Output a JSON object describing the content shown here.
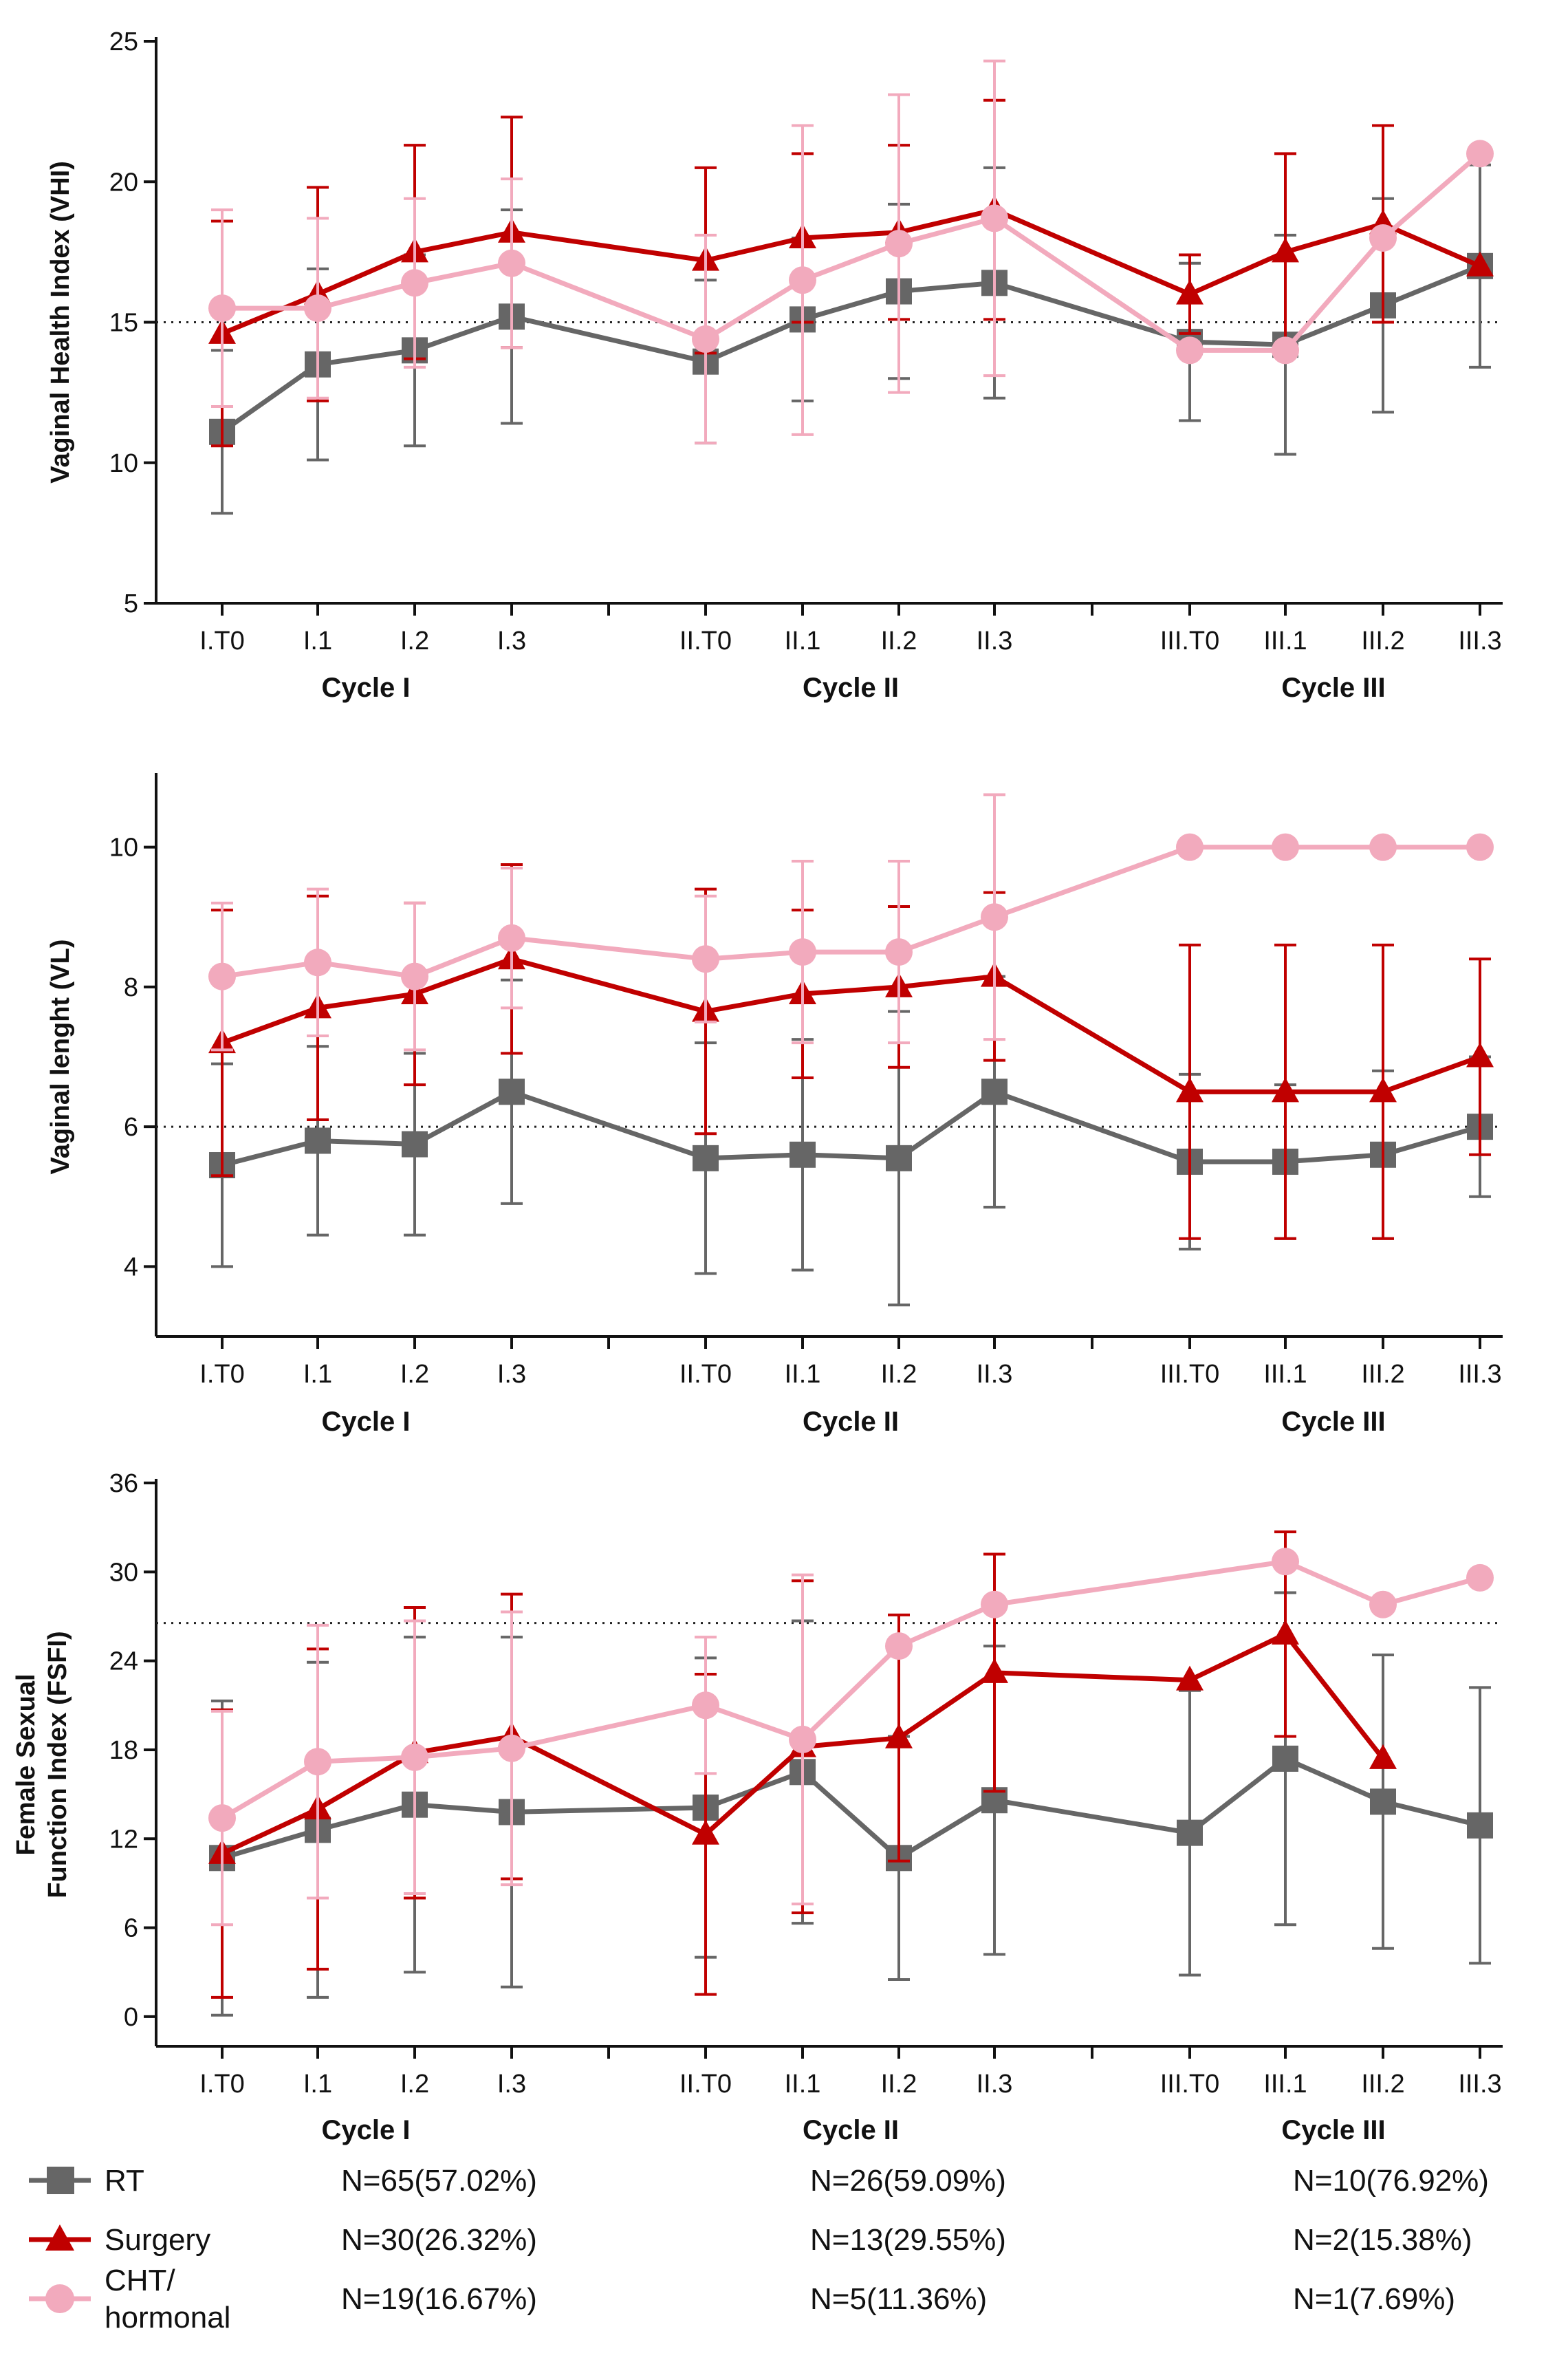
{
  "colors": {
    "RT": "#666666",
    "Surgery": "#c00000",
    "CHT": "#f2aabd"
  },
  "timepoints": [
    "I.T0",
    "I.1",
    "I.2",
    "I.3",
    "II.T0",
    "II.1",
    "II.2",
    "II.3",
    "III.T0",
    "III.1",
    "III.2",
    "III.3"
  ],
  "cycles": [
    "Cycle I",
    "Cycle II",
    "Cycle III"
  ],
  "chart_data": [
    {
      "type": "line",
      "title": "",
      "ylabel": "Vaginal Health Index (VHI)",
      "ylabel_lines": [
        "Vaginal Health Index (VHI)"
      ],
      "ylim": [
        5,
        25
      ],
      "yticks": [
        5,
        10,
        15,
        20,
        25
      ],
      "reference_line": 15,
      "series": [
        {
          "name": "RT",
          "marker": "square",
          "values": [
            11.1,
            13.5,
            14.0,
            15.2,
            13.6,
            15.1,
            16.1,
            16.4,
            14.3,
            14.2,
            15.6,
            17.0
          ],
          "err": [
            2.9,
            3.4,
            3.4,
            3.8,
            2.9,
            2.9,
            3.1,
            4.1,
            2.8,
            3.9,
            3.8,
            3.6
          ]
        },
        {
          "name": "Surgery",
          "marker": "triangle",
          "values": [
            14.6,
            16.0,
            17.5,
            18.2,
            17.2,
            18.0,
            18.2,
            19.0,
            16.0,
            17.5,
            18.5,
            17.0
          ],
          "err": [
            4.0,
            3.8,
            3.8,
            4.1,
            3.3,
            3.0,
            3.1,
            3.9,
            1.4,
            3.5,
            3.5,
            0
          ]
        },
        {
          "name": "CHT/hormonal",
          "marker": "circle",
          "values": [
            15.5,
            15.5,
            16.4,
            17.1,
            14.4,
            16.5,
            17.8,
            18.7,
            14.0,
            14.0,
            18.0,
            21.0
          ],
          "err": [
            3.5,
            3.2,
            3.0,
            3.0,
            3.7,
            5.5,
            5.3,
            5.6,
            0,
            0,
            0,
            0
          ]
        }
      ]
    },
    {
      "type": "line",
      "title": "",
      "ylabel": "Vaginal lenght (VL)",
      "ylabel_lines": [
        "Vaginal lenght (VL)"
      ],
      "ylim": [
        3,
        11
      ],
      "yticks": [
        4,
        6,
        8,
        10
      ],
      "reference_line": 6,
      "series": [
        {
          "name": "RT",
          "marker": "square",
          "values": [
            5.45,
            5.8,
            5.75,
            6.5,
            5.55,
            5.6,
            5.55,
            6.5,
            5.5,
            5.5,
            5.6,
            6.0
          ],
          "err": [
            1.45,
            1.35,
            1.3,
            1.6,
            1.65,
            1.65,
            2.1,
            1.65,
            1.25,
            1.1,
            1.2,
            1.0
          ]
        },
        {
          "name": "Surgery",
          "marker": "triangle",
          "values": [
            7.2,
            7.7,
            7.9,
            8.4,
            7.65,
            7.9,
            8.0,
            8.15,
            6.5,
            6.5,
            6.5,
            7.0
          ],
          "err": [
            1.9,
            1.6,
            1.3,
            1.35,
            1.75,
            1.2,
            1.15,
            1.2,
            2.1,
            2.1,
            2.1,
            1.4
          ]
        },
        {
          "name": "CHT/hormonal",
          "marker": "circle",
          "values": [
            8.15,
            8.35,
            8.15,
            8.7,
            8.4,
            8.5,
            8.5,
            9.0,
            10.0,
            10.0,
            10.0,
            10.0
          ],
          "err": [
            1.05,
            1.05,
            1.05,
            1.0,
            0.9,
            1.3,
            1.3,
            1.75,
            0,
            0,
            0,
            0
          ]
        }
      ]
    },
    {
      "type": "line",
      "title": "",
      "ylabel": "Female Sexual Function Index (FSFI)",
      "ylabel_lines": [
        "Female Sexual",
        "Function Index (FSFI)"
      ],
      "ylim": [
        -2,
        36
      ],
      "yticks": [
        0,
        6,
        12,
        18,
        24,
        30,
        36
      ],
      "reference_line": 26.55,
      "series": [
        {
          "name": "RT",
          "marker": "square",
          "values": [
            10.7,
            12.6,
            14.3,
            13.8,
            14.1,
            16.5,
            10.7,
            14.6,
            12.4,
            17.4,
            14.5,
            12.9
          ],
          "err": [
            10.6,
            11.3,
            11.3,
            11.8,
            10.1,
            10.2,
            8.2,
            10.4,
            9.6,
            11.2,
            9.9,
            9.3
          ]
        },
        {
          "name": "Surgery",
          "marker": "triangle",
          "values": [
            11.0,
            14.0,
            17.8,
            18.9,
            12.3,
            18.2,
            18.8,
            23.2,
            22.7,
            25.8,
            17.4,
            null
          ],
          "err": [
            9.7,
            10.8,
            9.8,
            9.6,
            10.8,
            11.2,
            8.3,
            8.0,
            0,
            6.9,
            0,
            0
          ]
        },
        {
          "name": "CHT/hormonal",
          "marker": "circle",
          "values": [
            13.4,
            17.2,
            17.5,
            18.1,
            21.0,
            18.7,
            25.0,
            27.8,
            null,
            30.7,
            27.8,
            29.6
          ],
          "err": [
            7.2,
            9.2,
            9.2,
            9.2,
            4.6,
            11.1,
            0,
            0,
            0,
            0,
            0,
            0
          ]
        }
      ]
    }
  ],
  "legend": {
    "items": [
      {
        "label_lines": [
          "RT"
        ],
        "counts": [
          "N=65(57.02%)",
          "N=26(59.09%)",
          "N=10(76.92%)"
        ]
      },
      {
        "label_lines": [
          "Surgery"
        ],
        "counts": [
          "N=30(26.32%)",
          "N=13(29.55%)",
          "N=2(15.38%)"
        ]
      },
      {
        "label_lines": [
          "CHT/",
          "hormonal"
        ],
        "counts": [
          "N=19(16.67%)",
          "N=5(11.36%)",
          "N=1(7.69%)"
        ]
      }
    ]
  }
}
